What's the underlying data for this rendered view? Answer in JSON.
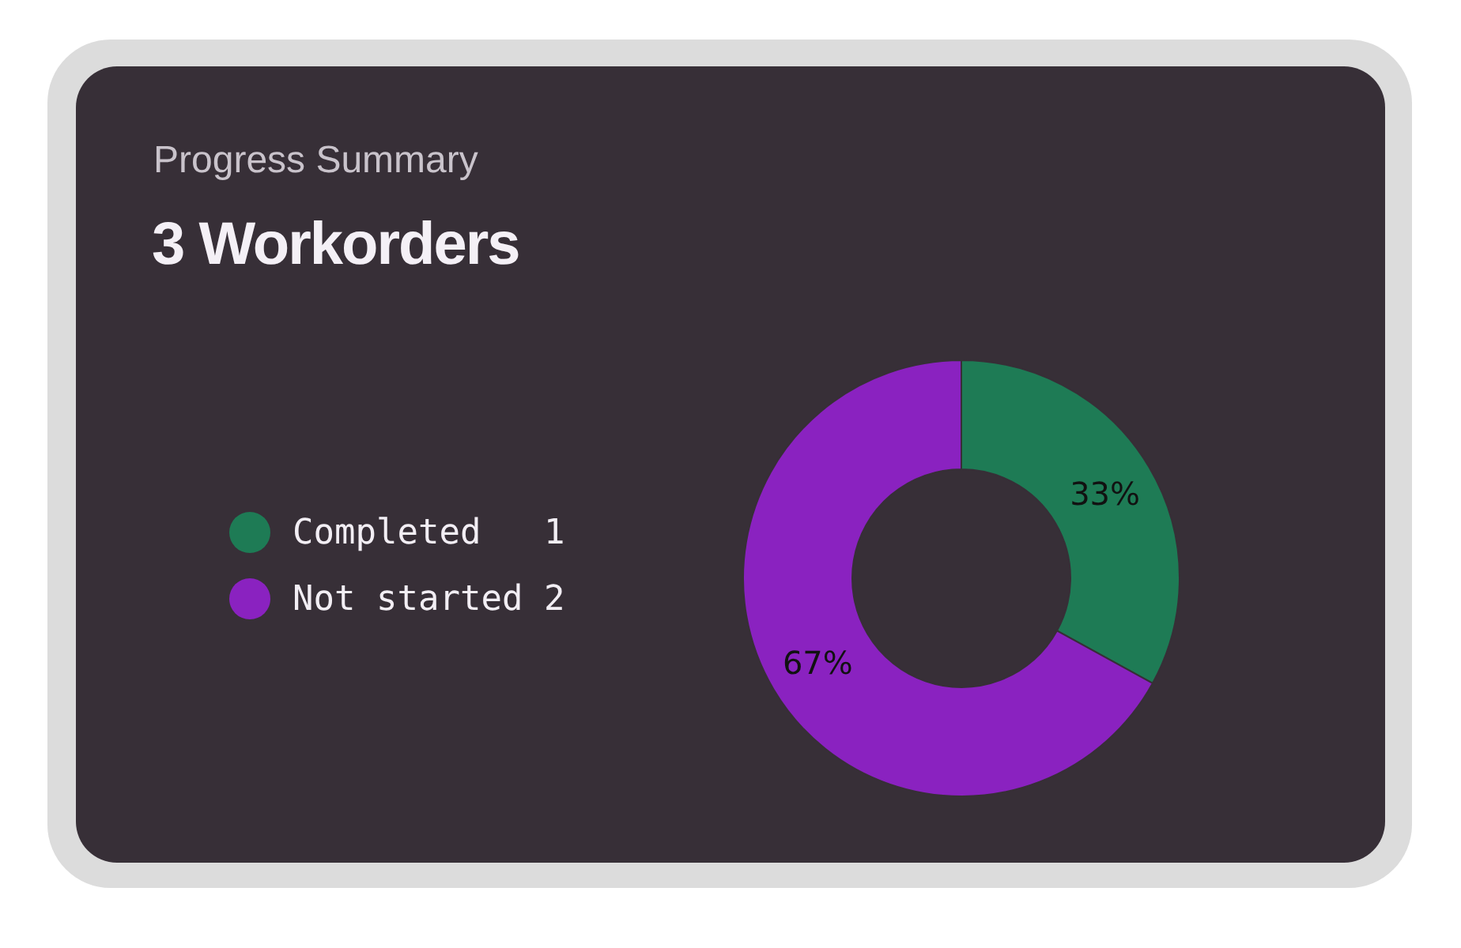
{
  "chart_data": {
    "type": "donut",
    "subtitle": "Progress Summary",
    "title": "3 Workorders",
    "categories": [
      "Completed   1",
      "Not started 2"
    ],
    "values": [
      33,
      67
    ],
    "colors": [
      "#1e7b55",
      "#8a22c0"
    ],
    "value_labels": [
      "33%",
      "67%"
    ],
    "legend": "left"
  }
}
